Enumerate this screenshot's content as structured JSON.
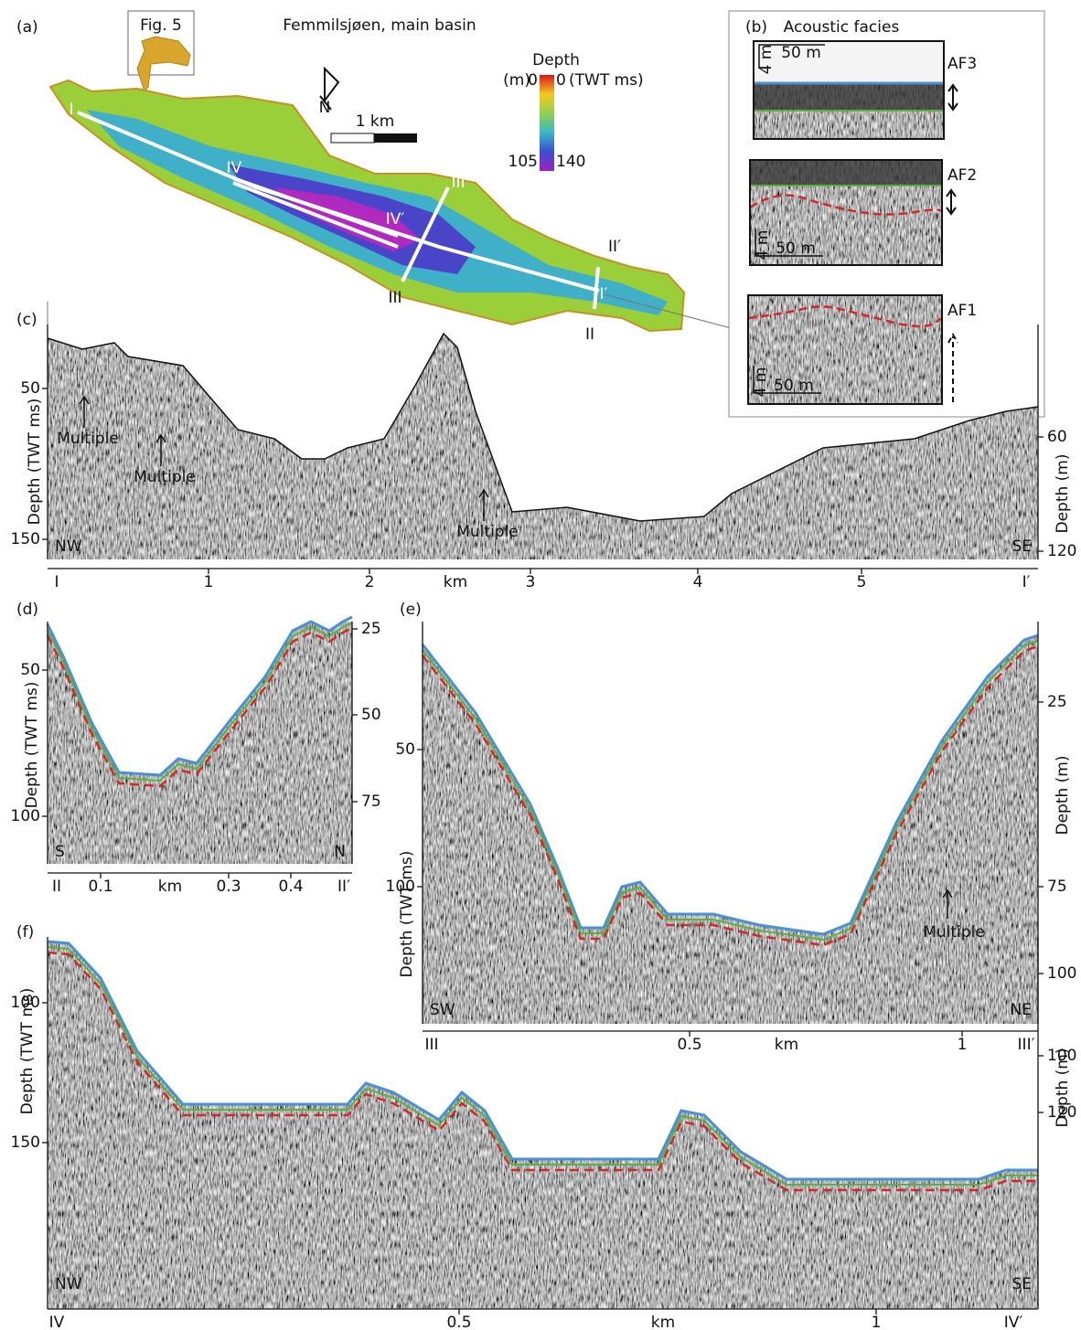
{
  "a": {
    "label": "(a)",
    "title": "Femmilsjøen, main basin",
    "inset": "Fig. 5",
    "north": "N",
    "scale": "1 km",
    "colorbar": {
      "title": "Depth",
      "left_unit": "(m)",
      "right_unit": "(TWT ms)",
      "left_min": 0,
      "right_min": 0,
      "left_max": 105,
      "right_max": 140
    },
    "profiles": [
      "I",
      "I′",
      "II",
      "II′",
      "III",
      "III′",
      "IV",
      "IV′"
    ]
  },
  "b": {
    "label": "(b)",
    "title": "Acoustic facies",
    "facies": [
      {
        "name": "AF3",
        "vscale": "4 m",
        "hscale": "50 m"
      },
      {
        "name": "AF2",
        "vscale": "4 m",
        "hscale": "50 m"
      },
      {
        "name": "AF1",
        "vscale": "4 m",
        "hscale": "50 m"
      }
    ]
  },
  "c": {
    "label": "(c)",
    "left_title": "Depth (TWT ms)",
    "right_title": "Depth (m)",
    "left_ticks": [
      50,
      150
    ],
    "right_ticks": [
      60,
      120
    ],
    "x_label": "km",
    "x_ticks": [
      1,
      2,
      3,
      4,
      5
    ],
    "start_label": "I",
    "end_label": "I′",
    "start": "NW",
    "end": "SE",
    "annotations": [
      "Multiple",
      "Multiple",
      "Multiple"
    ]
  },
  "d": {
    "label": "(d)",
    "left_title": "Depth (TWT ms)",
    "left_ticks": [
      50,
      100
    ],
    "right_ticks": [
      25,
      50,
      75
    ],
    "x_label": "km",
    "x_ticks": [
      0.1,
      0.3,
      0.4
    ],
    "start_label": "II",
    "end_label": "II′",
    "start": "S",
    "end": "N"
  },
  "e": {
    "label": "(e)",
    "left_title": "Depth (TWT ms)",
    "right_title": "Depth (m)",
    "left_ticks": [
      50,
      100
    ],
    "right_ticks": [
      25,
      75,
      100
    ],
    "x_label": "km",
    "x_ticks": [
      0.5,
      {
        "value": 1,
        "label": "1.0"
      }
    ],
    "start_label": "III",
    "end_label": "III′",
    "start": "SW",
    "end": "NE",
    "annotations": [
      "Multiple"
    ]
  },
  "f": {
    "label": "(f)",
    "left_title": "Depth (TWT ms)",
    "right_title": "Depth (m)",
    "left_ticks": [
      100,
      150
    ],
    "right_ticks": [
      100,
      120
    ],
    "x_label": "km",
    "x_ticks": [
      0.5,
      {
        "value": 1,
        "label": "1.0"
      }
    ],
    "start_label": "IV",
    "end_label": "IV′",
    "start": "NW",
    "end": "SE"
  }
}
